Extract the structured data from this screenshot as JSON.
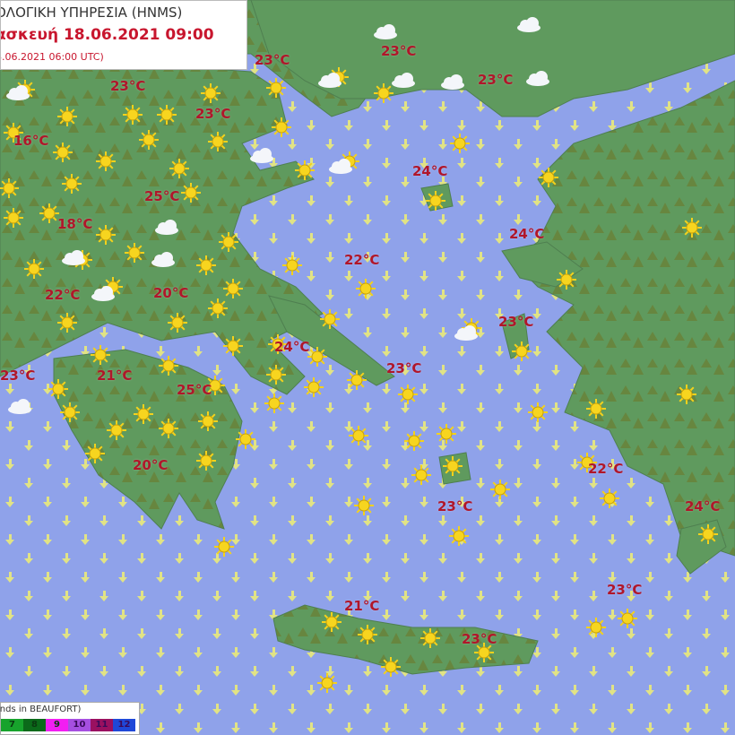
{
  "header": {
    "agency": "ΟΛΟΓΙΚΗ ΥΠΗΡΕΣΙΑ (HNMS)",
    "forecast_time": "ασκευή 18.06.2021 09:00",
    "run_time": "8.06.2021 06:00 UTC)"
  },
  "temperatures": [
    "23°C",
    "23°C",
    "23°C",
    "23°C",
    "23°C",
    "16°C",
    "25°C",
    "18°C",
    "24°C",
    "24°C",
    "22°C",
    "22°C",
    "20°C",
    "23°C",
    "24°C",
    "23°C",
    "23°C",
    "21°C",
    "25°C",
    "20°C",
    "22°C",
    "23°C",
    "24°C",
    "21°C",
    "23°C",
    "23°C"
  ],
  "legend": {
    "title": "inds in BEAUFORT)",
    "scale": [
      {
        "label": "7",
        "color": "#17a32c"
      },
      {
        "label": "8",
        "color": "#0b6a1a"
      },
      {
        "label": "9",
        "color": "#f21ef2"
      },
      {
        "label": "10",
        "color": "#a64fe0"
      },
      {
        "label": "11",
        "color": "#9a1060"
      },
      {
        "label": "12",
        "color": "#1f48d8"
      }
    ]
  },
  "colors": {
    "sea": "#8fa2ea",
    "land": "#5f9a5e",
    "mountain": "#6f7a2e",
    "temp_text": "#b0162a",
    "sun": "#f4d21c",
    "wind_arrow": "#e8e870"
  },
  "weather_icons": [
    "sun-icon",
    "cloud-icon",
    "wind-arrow-icon"
  ]
}
